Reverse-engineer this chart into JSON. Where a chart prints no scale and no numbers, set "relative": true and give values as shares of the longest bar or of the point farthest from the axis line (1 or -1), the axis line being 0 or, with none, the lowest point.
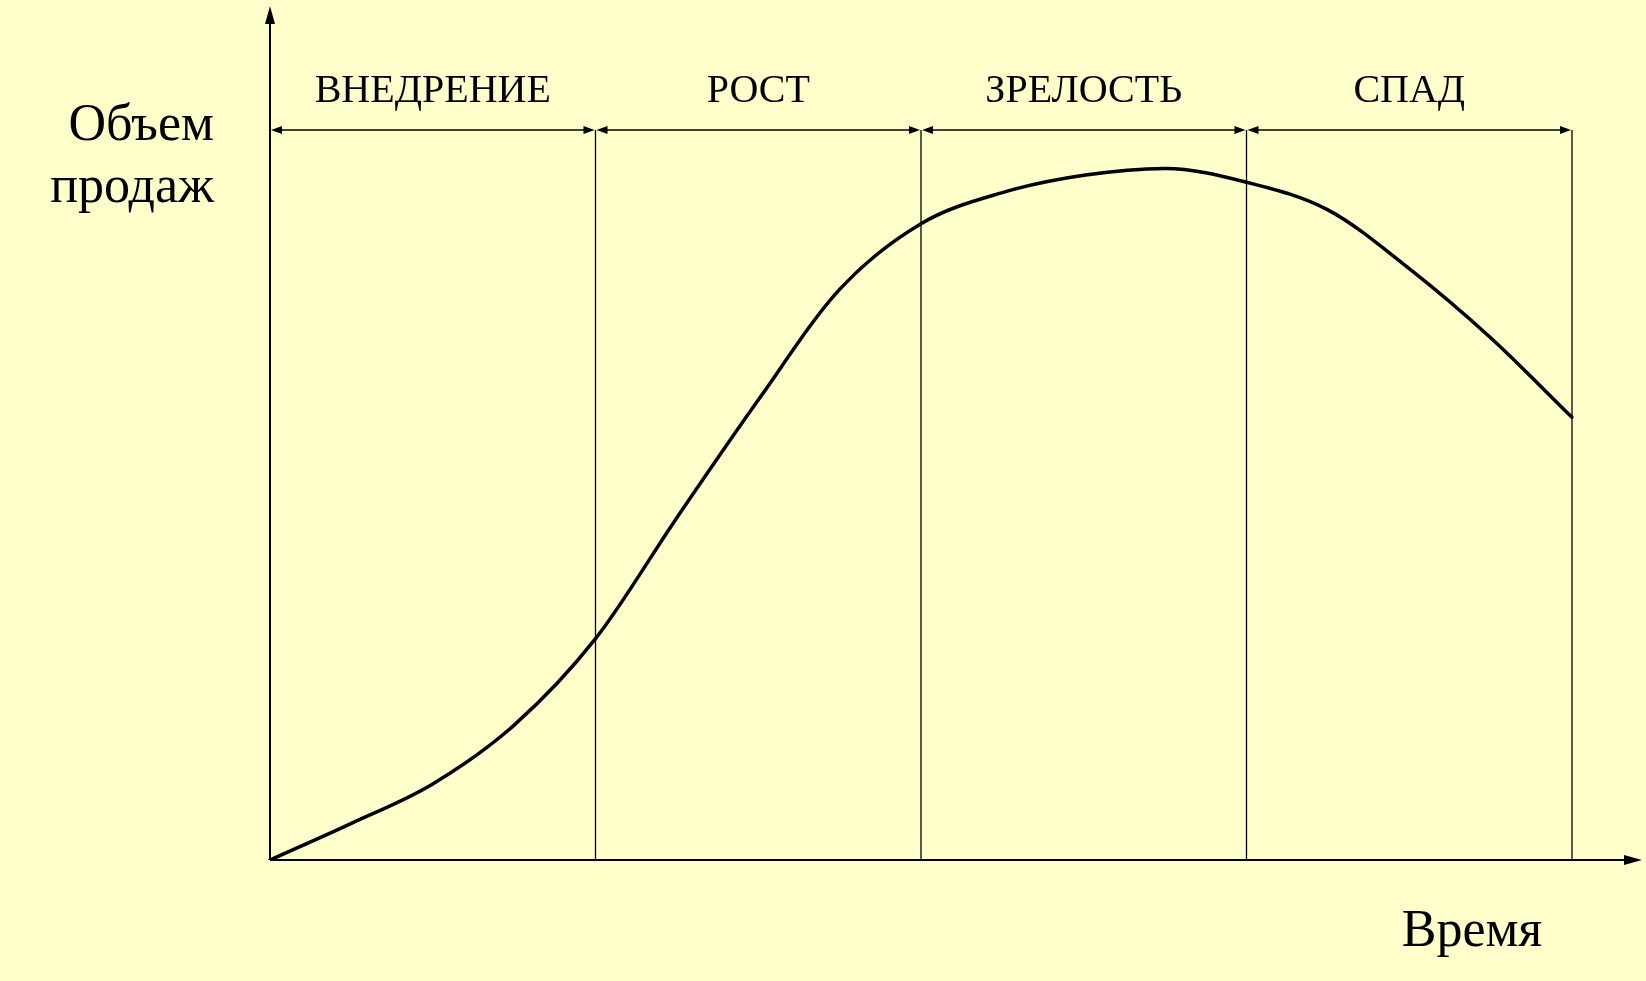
{
  "chart_data": {
    "type": "line",
    "relative": true,
    "xlabel": "Время",
    "ylabel": "Объем продаж",
    "color": "#000000",
    "tick_labels": false,
    "grid": "x",
    "categories": [
      null,
      null,
      null,
      null,
      null,
      null,
      null,
      null,
      null,
      null,
      null,
      null,
      null,
      null,
      null,
      null,
      null
    ],
    "values": [
      0,
      0.053,
      0.11,
      0.195,
      0.32,
      0.495,
      0.665,
      0.825,
      0.92,
      0.965,
      0.99,
      1.0,
      0.98,
      0.94,
      0.855,
      0.755,
      0.64
    ],
    "annotations": [
      "ВНЕДРЕНИЕ",
      "РОСТ",
      "ЗРЕЛОСТЬ",
      "СПАД"
    ]
  }
}
